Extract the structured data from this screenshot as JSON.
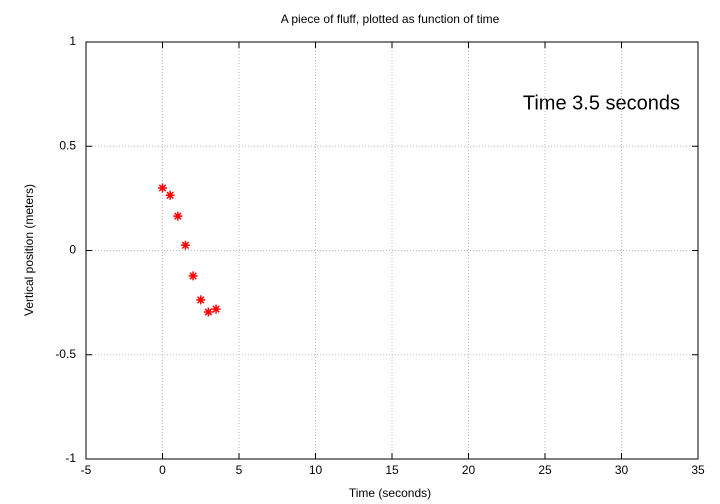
{
  "chart_data": {
    "type": "scatter",
    "title": "A piece of fluff, plotted as function of time",
    "xlabel": "Time (seconds)",
    "ylabel": "Vertical position (meters)",
    "annotation": "Time  3.5 seconds",
    "x": [
      0,
      0.5,
      1.0,
      1.5,
      2.0,
      2.5,
      3.0,
      3.5
    ],
    "values": [
      0.3,
      0.265,
      0.165,
      0.025,
      -0.122,
      -0.237,
      -0.295,
      -0.281
    ],
    "color": "#ff0000",
    "xlim": [
      -5,
      35
    ],
    "xticks": [
      -5,
      0,
      5,
      10,
      15,
      20,
      25,
      30,
      35
    ],
    "ylim": [
      -1,
      1
    ],
    "yticks": [
      -1,
      -0.5,
      0,
      0.5,
      1
    ],
    "grid": true
  }
}
